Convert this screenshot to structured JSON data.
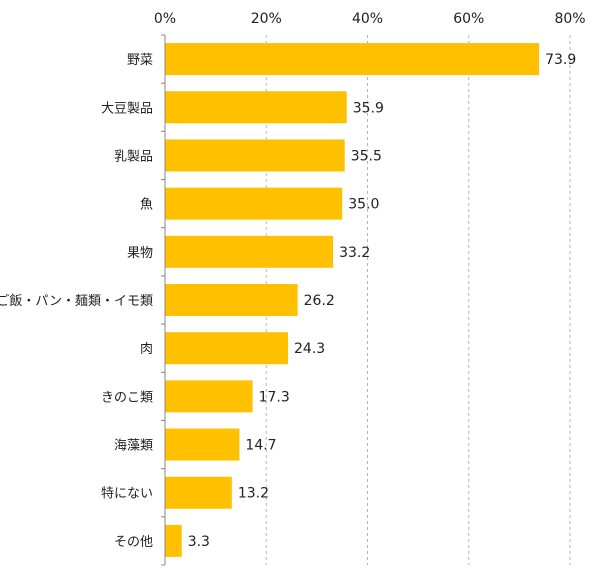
{
  "chart_data": {
    "type": "bar",
    "orientation": "horizontal",
    "categories": [
      "野菜",
      "大豆製品",
      "乳製品",
      "魚",
      "果物",
      "ご飯・パン・麺類・イモ類",
      "肉",
      "きのこ類",
      "海藻類",
      "特にない",
      "その他"
    ],
    "values": [
      73.9,
      35.9,
      35.5,
      35.0,
      33.2,
      26.2,
      24.3,
      17.3,
      14.7,
      13.2,
      3.3
    ],
    "value_labels": [
      "73.9",
      "35.9",
      "35.5",
      "35.0",
      "33.2",
      "26.2",
      "24.3",
      "17.3",
      "14.7",
      "13.2",
      "3.3"
    ],
    "xlim": [
      0,
      80
    ],
    "xticks": [
      0,
      20,
      40,
      60,
      80
    ],
    "xtick_labels": [
      "0%",
      "20%",
      "40%",
      "60%",
      "80%"
    ],
    "x_axis_position": "top",
    "grid": "vertical dashed",
    "bar_color": "#FFC000",
    "title": "",
    "xlabel": "",
    "ylabel": ""
  }
}
